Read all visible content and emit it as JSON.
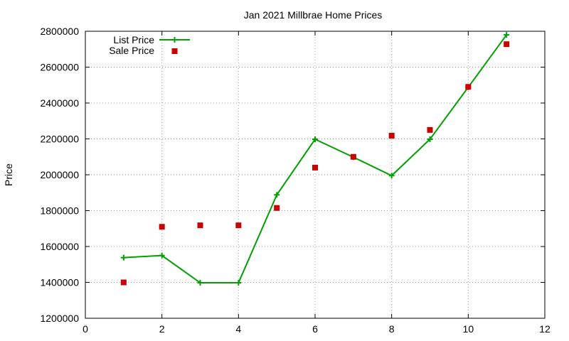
{
  "chart_data": {
    "type": "line",
    "title": "Jan 2021 Millbrae Home Prices",
    "xlabel": "",
    "ylabel": "Price",
    "xlim": [
      0,
      12
    ],
    "ylim": [
      1200000,
      2800000
    ],
    "xticks": [
      0,
      2,
      4,
      6,
      8,
      10,
      12
    ],
    "yticks": [
      1200000,
      1400000,
      1600000,
      1800000,
      2000000,
      2200000,
      2400000,
      2600000,
      2800000
    ],
    "grid": true,
    "legend_position": "top-left",
    "series": [
      {
        "name": "List Price",
        "style": "line-plus",
        "color": "#00a000",
        "x": [
          1,
          2,
          3,
          4,
          5,
          6,
          7,
          8,
          9,
          10,
          11
        ],
        "y": [
          1538000,
          1550000,
          1398000,
          1398000,
          1888000,
          2198000,
          2098000,
          1995000,
          2198000,
          2488000,
          2780000
        ]
      },
      {
        "name": "Sale Price",
        "style": "square-marker",
        "color": "#cc0000",
        "x": [
          1,
          2,
          3,
          4,
          5,
          6,
          7,
          8,
          9,
          10,
          11
        ],
        "y": [
          1400000,
          1710000,
          1718000,
          1718000,
          1815000,
          2040000,
          2100000,
          2218000,
          2250000,
          2490000,
          2728000
        ]
      }
    ]
  }
}
